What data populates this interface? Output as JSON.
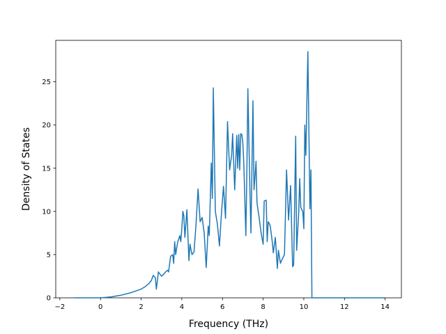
{
  "chart_data": {
    "type": "line",
    "xlabel": "Frequency (THz)",
    "ylabel": "Density of States",
    "xlim": [
      -2.2,
      14.8
    ],
    "ylim": [
      0,
      29.8
    ],
    "xticks": [
      -2,
      0,
      2,
      4,
      6,
      8,
      10,
      12,
      14
    ],
    "yticks": [
      0,
      5,
      10,
      15,
      20,
      25
    ],
    "xtick_labels": [
      "−2",
      "0",
      "2",
      "4",
      "6",
      "8",
      "10",
      "12",
      "14"
    ],
    "ytick_labels": [
      "0",
      "5",
      "10",
      "15",
      "20",
      "25"
    ],
    "grid": false,
    "color": "#1f77b4",
    "series": [
      {
        "x": [
          -1.3,
          -0.5,
          0.0,
          0.5,
          1.0,
          1.5,
          2.0,
          2.2,
          2.4,
          2.5,
          2.6,
          2.7,
          2.75,
          2.85,
          3.0,
          3.1,
          3.2,
          3.3,
          3.35,
          3.45,
          3.55,
          3.6,
          3.65,
          3.7,
          3.75,
          3.8,
          3.85,
          3.9,
          3.95,
          4.0,
          4.05,
          4.1,
          4.15,
          4.25,
          4.35,
          4.4,
          4.5,
          4.6,
          4.7,
          4.8,
          4.9,
          5.0,
          5.1,
          5.2,
          5.3,
          5.35,
          5.45,
          5.5,
          5.55,
          5.65,
          5.75,
          5.85,
          5.95,
          6.05,
          6.15,
          6.25,
          6.3,
          6.35,
          6.45,
          6.5,
          6.6,
          6.7,
          6.75,
          6.8,
          6.85,
          6.9,
          6.95,
          7.0,
          7.05,
          7.15,
          7.2,
          7.25,
          7.35,
          7.4,
          7.5,
          7.55,
          7.6,
          7.65,
          7.7,
          7.8,
          7.9,
          8.0,
          8.05,
          8.15,
          8.2,
          8.25,
          8.3,
          8.35,
          8.45,
          8.5,
          8.6,
          8.7,
          8.75,
          8.85,
          8.9,
          8.95,
          9.05,
          9.15,
          9.25,
          9.35,
          9.45,
          9.5,
          9.6,
          9.65,
          9.75,
          9.8,
          9.85,
          9.9,
          9.95,
          10.0,
          10.05,
          10.1,
          10.2,
          10.3,
          10.35,
          10.4,
          10.45,
          10.55,
          10.65,
          10.7,
          10.75,
          10.8,
          11.0,
          11.5,
          12.0,
          12.1,
          12.2,
          12.3,
          12.5,
          12.55,
          12.6,
          12.65,
          12.7,
          12.75,
          12.8,
          13.0,
          13.5,
          14.0
        ],
        "y": [
          0,
          0,
          0,
          0.1,
          0.3,
          0.6,
          1.0,
          1.3,
          1.7,
          2.0,
          2.6,
          2.3,
          1.0,
          3.0,
          2.5,
          2.7,
          3.0,
          3.2,
          3.0,
          4.8,
          5.0,
          4.0,
          6.5,
          5.0,
          5.8,
          6.5,
          6.8,
          7.2,
          6.5,
          8.0,
          10.0,
          9.5,
          7.0,
          10.2,
          4.3,
          6.2,
          5.0,
          5.3,
          8.5,
          12.6,
          8.8,
          9.3,
          7.5,
          3.5,
          8.3,
          7.2,
          15.6,
          11.5,
          24.3,
          10.0,
          8.5,
          6.0,
          9.8,
          12.9,
          9.2,
          20.4,
          17.5,
          14.8,
          16.5,
          19.0,
          12.5,
          18.8,
          15.0,
          18.9,
          14.8,
          19.0,
          18.9,
          18.0,
          15.5,
          7.2,
          14.8,
          24.2,
          12.5,
          7.5,
          22.8,
          12.5,
          14.0,
          15.8,
          11.0,
          9.3,
          7.5,
          6.2,
          11.2,
          11.3,
          6.5,
          8.8,
          8.6,
          8.3,
          6.5,
          5.2,
          7.0,
          3.4,
          5.5,
          4.0,
          4.3,
          4.5,
          5.0,
          14.8,
          9.0,
          13.0,
          3.6,
          3.8,
          18.7,
          5.5,
          10.0,
          13.8,
          10.5,
          10.2,
          10.0,
          8.0,
          20.0,
          16.5,
          28.5,
          10.3,
          14.8,
          0,
          0,
          0,
          0,
          0,
          0,
          0,
          0,
          0,
          0,
          0,
          0,
          0,
          0,
          0,
          0,
          0,
          0,
          0,
          0,
          0,
          0,
          0
        ]
      }
    ]
  }
}
